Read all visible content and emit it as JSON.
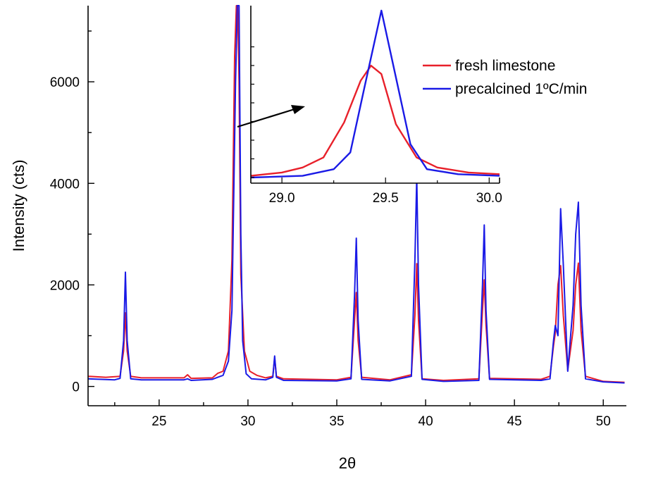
{
  "chart_data": {
    "type": "line",
    "xlabel": "2θ",
    "ylabel": "Intensity (cts)",
    "xlim": [
      21,
      51.3
    ],
    "ylim": [
      -380,
      7500
    ],
    "x_ticks": [
      25,
      30,
      35,
      40,
      45,
      50
    ],
    "y_ticks": [
      0,
      2000,
      4000,
      6000
    ],
    "legend": {
      "placement": "top-right"
    },
    "series": [
      {
        "name": "fresh limestone",
        "color": "#e8202a",
        "x": [
          21.0,
          22.0,
          22.8,
          23.0,
          23.1,
          23.2,
          23.4,
          24.0,
          26.4,
          26.6,
          26.8,
          28.0,
          28.3,
          28.6,
          28.9,
          29.1,
          29.25,
          29.35,
          29.42,
          29.5,
          29.6,
          29.8,
          30.1,
          30.5,
          31.0,
          31.4,
          31.5,
          31.6,
          32.0,
          35.0,
          35.8,
          36.0,
          36.1,
          36.2,
          36.4,
          38.0,
          39.2,
          39.4,
          39.5,
          39.6,
          39.8,
          41.0,
          43.0,
          43.2,
          43.3,
          43.4,
          43.6,
          46.5,
          47.0,
          47.2,
          47.3,
          47.45,
          47.6,
          47.75,
          48.0,
          48.3,
          48.45,
          48.6,
          48.75,
          49.0,
          50.0,
          51.2
        ],
        "y": [
          200,
          180,
          200,
          700,
          1450,
          700,
          200,
          170,
          170,
          230,
          160,
          170,
          260,
          300,
          700,
          2500,
          6500,
          7500,
          7500,
          6000,
          2200,
          700,
          300,
          220,
          170,
          200,
          560,
          200,
          150,
          130,
          180,
          1300,
          1850,
          900,
          180,
          130,
          230,
          1400,
          2420,
          1300,
          150,
          120,
          150,
          1500,
          2100,
          1200,
          160,
          140,
          200,
          800,
          1050,
          2000,
          2380,
          1400,
          320,
          1100,
          2000,
          2430,
          1100,
          200,
          100,
          80
        ]
      },
      {
        "name": "precalcined 1ºC/min",
        "color": "#1a1ae6",
        "x": [
          21.0,
          22.5,
          22.8,
          23.0,
          23.1,
          23.2,
          23.4,
          24.0,
          26.4,
          26.6,
          26.8,
          28.0,
          28.3,
          28.6,
          28.9,
          29.1,
          29.3,
          29.4,
          29.5,
          29.6,
          29.7,
          29.9,
          30.2,
          31.0,
          31.4,
          31.5,
          31.6,
          32.0,
          35.0,
          35.8,
          36.0,
          36.1,
          36.2,
          36.4,
          38.0,
          39.2,
          39.4,
          39.5,
          39.6,
          39.8,
          41.0,
          43.0,
          43.2,
          43.3,
          43.4,
          43.6,
          46.5,
          47.0,
          47.2,
          47.3,
          47.45,
          47.6,
          47.75,
          48.0,
          48.3,
          48.45,
          48.6,
          48.75,
          49.0,
          50.0,
          51.2
        ],
        "y": [
          150,
          130,
          160,
          900,
          2250,
          900,
          150,
          130,
          130,
          150,
          120,
          140,
          180,
          220,
          500,
          1500,
          6000,
          7500,
          7500,
          3000,
          900,
          250,
          150,
          130,
          180,
          600,
          180,
          120,
          110,
          150,
          1800,
          2920,
          1300,
          140,
          110,
          200,
          2500,
          4130,
          2000,
          140,
          100,
          120,
          2000,
          3180,
          1500,
          140,
          120,
          150,
          900,
          1200,
          1000,
          3500,
          2400,
          300,
          1600,
          3000,
          3630,
          1600,
          150,
          90,
          70
        ]
      }
    ],
    "inset": {
      "xlim": [
        28.85,
        30.05
      ],
      "x_ticks": [
        29.0,
        29.5,
        30.0
      ],
      "x_tick_labels": [
        "29.0",
        "29.5",
        "30.0"
      ],
      "series": [
        {
          "name": "fresh limestone",
          "color": "#e8202a",
          "x": [
            28.85,
            29.0,
            29.1,
            29.2,
            29.3,
            29.38,
            29.43,
            29.48,
            29.55,
            29.65,
            29.75,
            29.9,
            30.05
          ],
          "y": [
            0.01,
            0.03,
            0.06,
            0.12,
            0.33,
            0.58,
            0.67,
            0.62,
            0.32,
            0.12,
            0.06,
            0.03,
            0.02
          ]
        },
        {
          "name": "precalcined 1ºC/min",
          "color": "#1a1ae6",
          "x": [
            28.85,
            29.1,
            29.25,
            29.33,
            29.4,
            29.48,
            29.55,
            29.62,
            29.7,
            29.85,
            30.05
          ],
          "y": [
            0.0,
            0.01,
            0.05,
            0.15,
            0.55,
            1.0,
            0.6,
            0.2,
            0.05,
            0.02,
            0.01
          ]
        }
      ]
    }
  }
}
